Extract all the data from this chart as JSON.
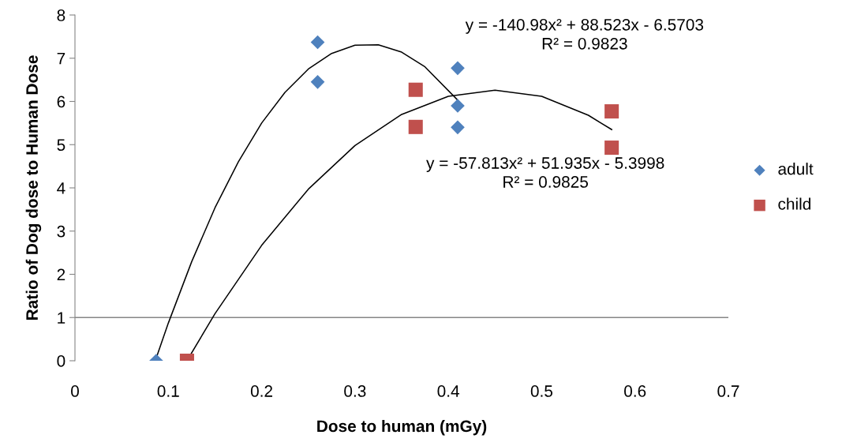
{
  "chart_data": {
    "type": "scatter",
    "xlabel": "Dose to human (mGy)",
    "ylabel": "Ratio of Dog dose to Human Dose",
    "xlim": [
      0,
      0.7
    ],
    "xticks": [
      {
        "value": 0,
        "label": "0"
      },
      {
        "value": 0.1,
        "label": "0.1"
      },
      {
        "value": 0.2,
        "label": "0.2"
      },
      {
        "value": 0.3,
        "label": "0.3"
      },
      {
        "value": 0.4,
        "label": "0.4"
      },
      {
        "value": 0.5,
        "label": "0.5"
      },
      {
        "value": 0.6,
        "label": "0.6"
      },
      {
        "value": 0.7,
        "label": "0.7"
      }
    ],
    "ylim": [
      0,
      8
    ],
    "yticks": [
      0,
      1,
      2,
      3,
      4,
      5,
      6,
      7,
      8
    ],
    "grid": false,
    "legend": "right",
    "ref_lines": [
      {
        "axis": "y",
        "value": 1,
        "color": "#868686"
      }
    ],
    "series": [
      {
        "name": "adult",
        "color": "#4f81bd",
        "marker": "diamond",
        "x": [
          0.087,
          0.26,
          0.26,
          0.41,
          0.41,
          0.41
        ],
        "values": [
          0,
          7.37,
          6.45,
          6.77,
          5.9,
          5.4
        ]
      },
      {
        "name": "child",
        "color": "#c0504d",
        "marker": "square",
        "x": [
          0.12,
          0.365,
          0.365,
          0.575,
          0.575
        ],
        "values": [
          0,
          6.27,
          5.41,
          5.77,
          4.93
        ]
      },
      {
        "type": "line",
        "color": "#000000",
        "x": [
          0.087,
          0.1,
          0.125,
          0.15,
          0.175,
          0.2,
          0.225,
          0.25,
          0.275,
          0.3,
          0.325,
          0.35,
          0.375,
          0.41
        ],
        "values": [
          0.06,
          0.87,
          2.29,
          3.54,
          4.6,
          5.5,
          6.21,
          6.75,
          7.11,
          7.3,
          7.31,
          7.14,
          6.8,
          6.03
        ]
      },
      {
        "type": "line",
        "color": "#000000",
        "x": [
          0.12,
          0.15,
          0.2,
          0.25,
          0.3,
          0.35,
          0.4,
          0.45,
          0.5,
          0.55,
          0.575
        ],
        "values": [
          0,
          1.09,
          2.67,
          3.97,
          4.98,
          5.7,
          6.12,
          6.26,
          6.12,
          5.68,
          5.35
        ]
      }
    ],
    "annotations": [
      "y = -140.98x² + 88.523x - 6.5703\nR² = 0.9823",
      "y = -57.813x² + 51.935x - 5.3998\nR² = 0.9825"
    ]
  }
}
